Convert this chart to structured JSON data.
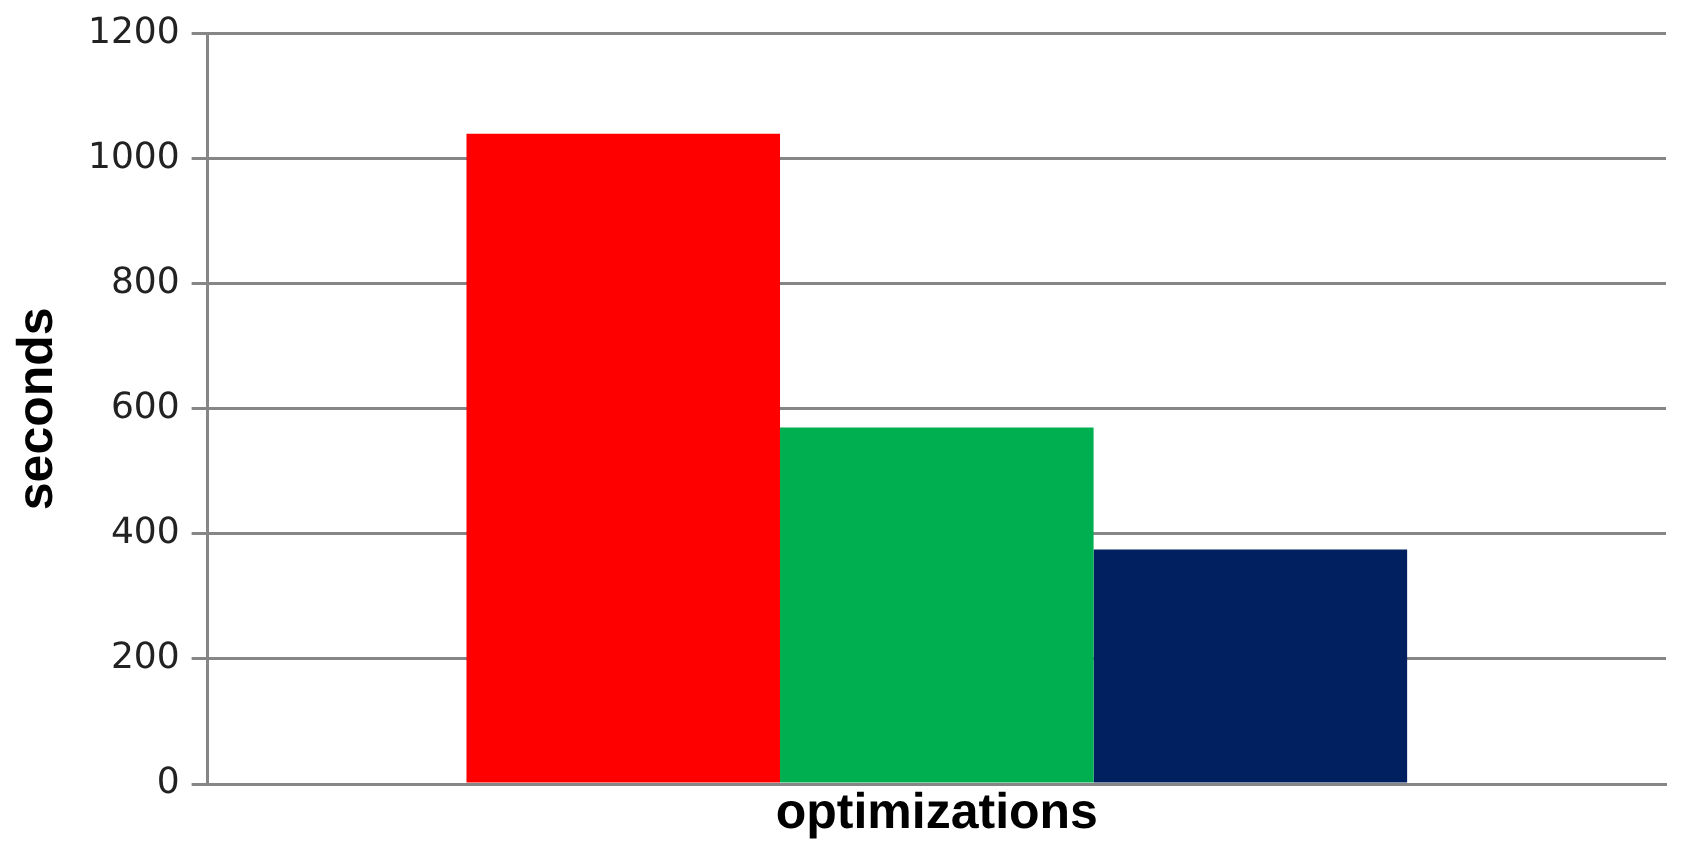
{
  "chart_data": {
    "type": "bar",
    "xlabel": "optimizations",
    "ylabel": "seconds",
    "categories": [
      null
    ],
    "series": [
      {
        "color": "#ff0000",
        "values": [
          1040
        ]
      },
      {
        "color": "#00b050",
        "values": [
          570
        ]
      },
      {
        "color": "#002060",
        "values": [
          375
        ]
      }
    ],
    "ylim": [
      0,
      1200
    ],
    "yticks": [
      0,
      200,
      400,
      600,
      800,
      1000,
      1200
    ],
    "grid": "y",
    "legend": false
  }
}
